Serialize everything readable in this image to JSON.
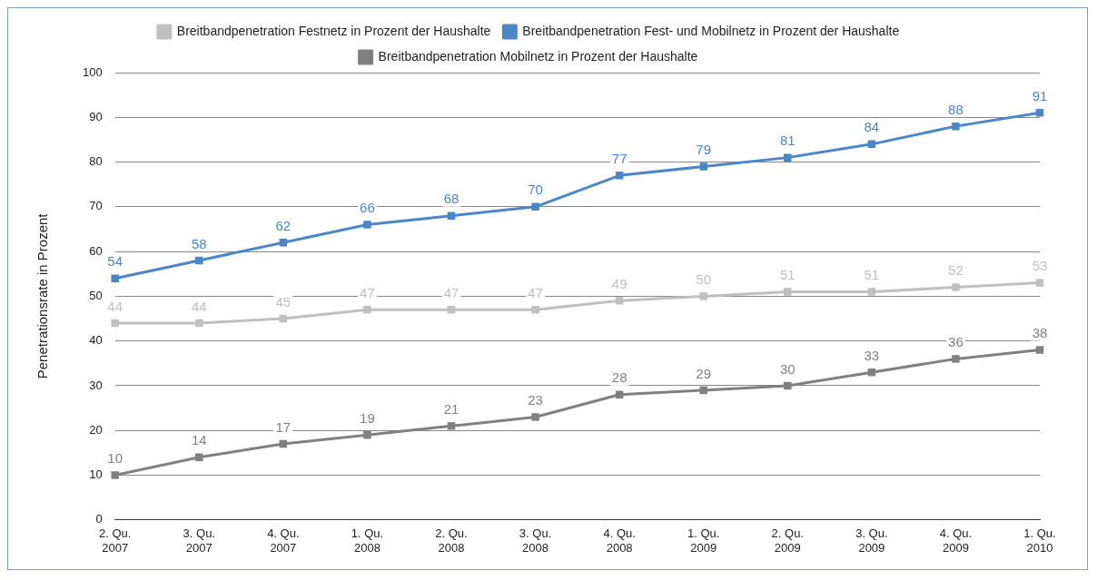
{
  "chart_data": {
    "type": "line",
    "ylabel": "Penetrationsrate in Prozent",
    "categories": [
      "2. Qu.\n2007",
      "3. Qu.\n2007",
      "4. Qu.\n2007",
      "1. Qu.\n2008",
      "2. Qu.\n2008",
      "3. Qu.\n2008",
      "4. Qu.\n2008",
      "1. Qu.\n2009",
      "2. Qu.\n2009",
      "3. Qu.\n2009",
      "4. Qu.\n2009",
      "1. Qu.\n2010"
    ],
    "series": [
      {
        "name": "Breitbandpenetration Festnetz in Prozent der Haushalte",
        "color": "#c0c0c0",
        "values": [
          44,
          44,
          45,
          47,
          47,
          47,
          49,
          50,
          51,
          51,
          52,
          53
        ]
      },
      {
        "name": "Breitbandpenetration Fest- und Mobilnetz in Prozent der Haushalte",
        "color": "#4a86c8",
        "values": [
          54,
          58,
          62,
          66,
          68,
          70,
          77,
          79,
          81,
          84,
          88,
          91
        ]
      },
      {
        "name": "Breitbandpenetration Mobilnetz in Prozent der Haushalte",
        "color": "#808080",
        "values": [
          10,
          14,
          17,
          19,
          21,
          23,
          28,
          29,
          30,
          33,
          36,
          38
        ]
      }
    ],
    "ylim": [
      0,
      100
    ],
    "yticks": [
      0,
      10,
      20,
      30,
      40,
      50,
      60,
      70,
      80,
      90,
      100
    ],
    "grid": "y",
    "legend": "top",
    "marker": "square",
    "line_style": "solid",
    "data_labels": true
  }
}
